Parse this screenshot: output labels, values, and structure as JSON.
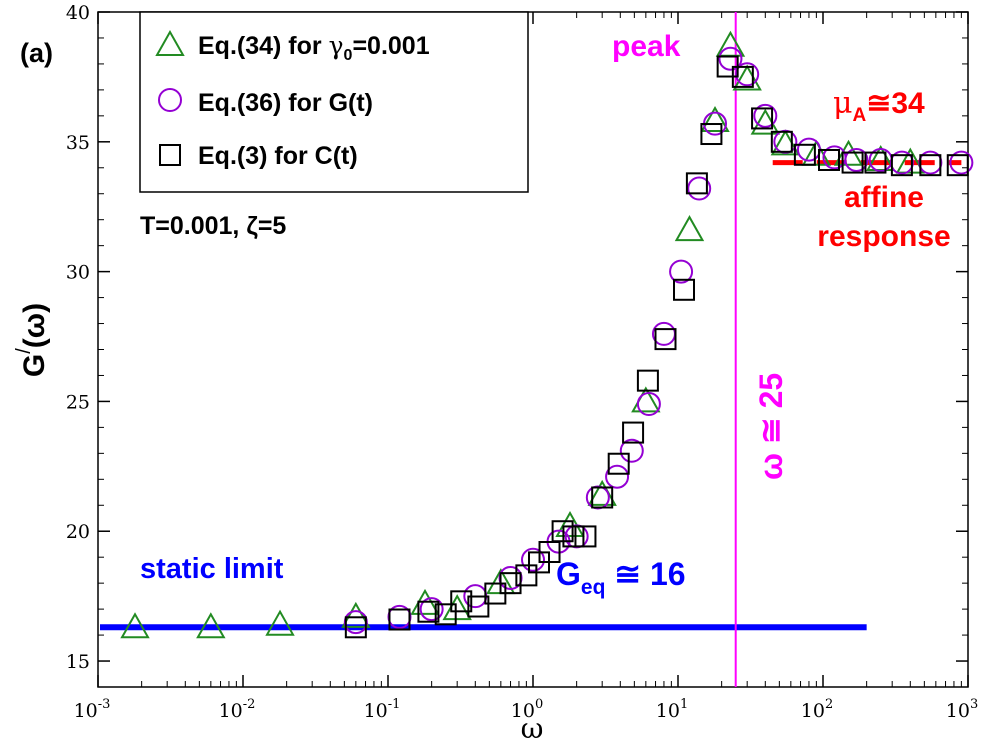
{
  "chart_data": {
    "type": "scatter",
    "panel_label": "(a)",
    "xlabel": "ω",
    "ylabel": {
      "main": "G",
      "sup": "/",
      "arg": "(ω)"
    },
    "xscale": "log",
    "xlim": [
      0.001,
      1000
    ],
    "ylim": [
      14,
      40
    ],
    "x_ticks": [
      {
        "base": "10",
        "exp": "-3",
        "value": 0.001
      },
      {
        "base": "10",
        "exp": "-2",
        "value": 0.01
      },
      {
        "base": "10",
        "exp": "-1",
        "value": 0.1
      },
      {
        "base": "10",
        "exp": "0",
        "value": 1
      },
      {
        "base": "10",
        "exp": "1",
        "value": 10
      },
      {
        "base": "10",
        "exp": "2",
        "value": 100
      },
      {
        "base": "10",
        "exp": "3",
        "value": 1000
      }
    ],
    "y_ticks": [
      {
        "label": "15",
        "value": 15
      },
      {
        "label": "20",
        "value": 20
      },
      {
        "label": "25",
        "value": 25
      },
      {
        "label": "30",
        "value": 30
      },
      {
        "label": "35",
        "value": 35
      },
      {
        "label": "40",
        "value": 40
      }
    ],
    "legend": [
      {
        "marker": "triangle",
        "color": "#228b22",
        "text": "Eq.(34) for ",
        "sym": "γ",
        "sub": "0",
        "tail": "=0.001"
      },
      {
        "marker": "circle",
        "color": "#9400d3",
        "text": "Eq.(36) for G(t)",
        "sym": "",
        "sub": "",
        "tail": ""
      },
      {
        "marker": "square",
        "color": "#000000",
        "text": "Eq.(3) for C(t)",
        "sym": "",
        "sub": "",
        "tail": ""
      }
    ],
    "params_text": "T=0.001, ζ=5",
    "series": [
      {
        "name": "Eq.(34) for γ0=0.001",
        "marker": "triangle",
        "color": "#228b22",
        "x": [
          0.0018,
          0.006,
          0.018,
          0.06,
          0.18,
          0.3,
          0.6,
          1.8,
          3.0,
          6.0,
          12.0,
          18.0,
          23.0,
          30.0,
          40.0,
          55.0,
          90.0,
          150.0,
          250.0,
          400.0
        ],
        "y": [
          16.3,
          16.3,
          16.4,
          16.7,
          17.2,
          17.0,
          18.0,
          20.2,
          21.4,
          25.0,
          31.6,
          35.8,
          38.7,
          37.4,
          35.7,
          34.9,
          34.5,
          34.5,
          34.3,
          34.2
        ]
      },
      {
        "name": "Eq.(36) for G(t)",
        "marker": "circle",
        "color": "#9400d3",
        "x": [
          0.06,
          0.12,
          0.2,
          0.4,
          0.7,
          1.0,
          1.5,
          2.0,
          2.8,
          3.8,
          4.8,
          6.3,
          8.0,
          10.5,
          14.0,
          18.0,
          23.0,
          30.0,
          40.0,
          55.0,
          80.0,
          120.0,
          170.0,
          250.0,
          350.0,
          550.0,
          900.0
        ],
        "y": [
          16.5,
          16.7,
          17.0,
          17.5,
          18.2,
          18.9,
          19.6,
          19.8,
          21.3,
          22.1,
          23.1,
          24.9,
          27.6,
          30.0,
          33.2,
          35.7,
          38.2,
          37.6,
          36.0,
          35.0,
          34.7,
          34.4,
          34.3,
          34.3,
          34.2,
          34.2,
          34.2
        ]
      },
      {
        "name": "Eq.(3) for C(t)",
        "marker": "square",
        "color": "#000000",
        "x": [
          0.06,
          0.12,
          0.19,
          0.25,
          0.32,
          0.42,
          0.55,
          0.7,
          0.9,
          1.1,
          1.3,
          1.6,
          1.9,
          2.3,
          3.0,
          3.9,
          4.9,
          6.2,
          8.2,
          11.0,
          13.5,
          17.0,
          22.0,
          28.0,
          38.0,
          52.0,
          75.0,
          110.0,
          160.0,
          230.0,
          350.0,
          550.0,
          850.0
        ],
        "y": [
          16.3,
          16.6,
          16.9,
          16.8,
          17.3,
          17.1,
          17.6,
          18.0,
          18.3,
          18.8,
          19.2,
          20.0,
          19.8,
          19.8,
          21.3,
          22.6,
          23.8,
          25.8,
          27.4,
          29.3,
          33.4,
          35.3,
          37.9,
          37.5,
          35.9,
          35.0,
          34.5,
          34.3,
          34.2,
          34.2,
          34.1,
          34.1,
          34.1
        ]
      }
    ],
    "static_line": {
      "y": 16.3,
      "x_from": 0.001,
      "x_to": 200,
      "color": "#0000ff"
    },
    "affine_line": {
      "y": 34.2,
      "x_from": 45,
      "x_to": 900,
      "color": "#ff0000"
    },
    "peak_line": {
      "x": 25,
      "color": "#ff00ff"
    },
    "annotations": {
      "peak": "peak",
      "omega_peak": "ω ≅ 25",
      "mu_a": {
        "sym": "μ",
        "sub": "A",
        "tail": "≅34"
      },
      "affine1": "affine",
      "affine2": "response",
      "static": "static limit",
      "geq": {
        "main": "G",
        "sub": "eq",
        "tail": " ≅ 16"
      }
    }
  }
}
